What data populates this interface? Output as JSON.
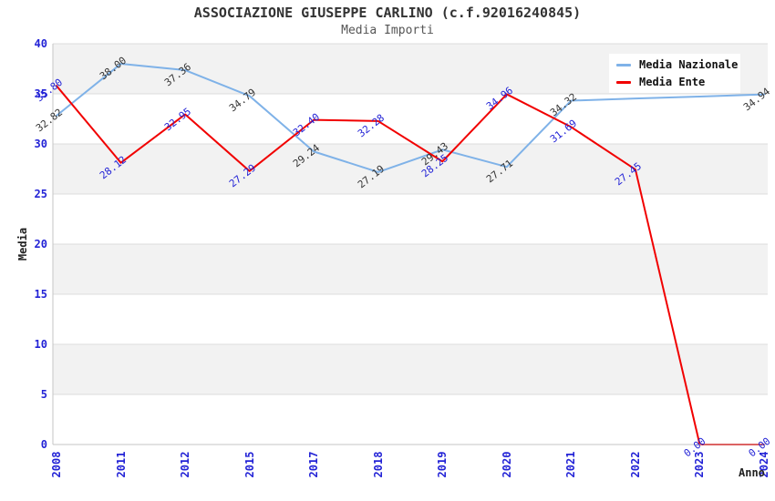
{
  "header": {
    "title": "ASSOCIAZIONE GIUSEPPE CARLINO (c.f.92016240845)",
    "subtitle": "Media Importi"
  },
  "legend": {
    "items": [
      {
        "label": "Media Nazionale",
        "color": "#7fb2e8"
      },
      {
        "label": "Media Ente",
        "color": "#f10000"
      }
    ]
  },
  "chart_data": {
    "type": "line",
    "title": "ASSOCIAZIONE GIUSEPPE CARLINO (c.f.92016240845)",
    "subtitle": "Media Importi",
    "xlabel": "Anno",
    "ylabel": "Media",
    "ylim": [
      0,
      40
    ],
    "ytick_step": 5,
    "grid": true,
    "legend_position": "top-right",
    "categories": [
      "2008",
      "2011",
      "2012",
      "2015",
      "2017",
      "2018",
      "2019",
      "2020",
      "2021",
      "2022",
      "2023",
      "2024"
    ],
    "series": [
      {
        "name": "Media Nazionale",
        "color": "#7fb2e8",
        "label_color": "#333333",
        "values": [
          32.82,
          38.0,
          37.36,
          34.79,
          29.24,
          27.19,
          29.43,
          27.71,
          34.32,
          34.53,
          34.73,
          34.94
        ],
        "point_labels": [
          "32.82",
          "38.00",
          "37.36",
          "34.79",
          "29.24",
          "27.19",
          "29.43",
          "27.71",
          "34.32",
          null,
          null,
          "34.94"
        ]
      },
      {
        "name": "Media Ente",
        "color": "#f10000",
        "label_color": "#2323d6",
        "values": [
          35.8,
          28.12,
          32.95,
          27.29,
          32.4,
          32.28,
          28.25,
          34.96,
          31.69,
          27.45,
          0.0,
          0.0
        ],
        "point_labels": [
          "35.80",
          "28.12",
          "32.95",
          "27.29",
          "32.40",
          "32.28",
          "28.25",
          "34.96",
          "31.69",
          "27.45",
          "0.00",
          "0.00"
        ]
      }
    ],
    "colors": {
      "band": "#f2f2f2",
      "gridline": "#dcdcdc",
      "axis": "#c6c6c6",
      "tick_label": "#2323d6"
    }
  }
}
